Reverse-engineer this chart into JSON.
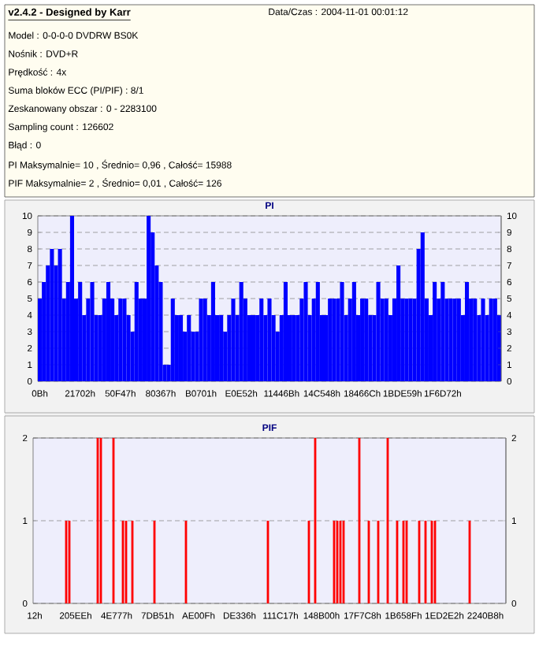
{
  "chart_data": [
    {
      "type": "other",
      "title": "v2.4.2 - Designed by Karr",
      "annotations": [
        "Data/Czas : 2004-11-01 00:01:12",
        "Model : 0-0-0-0 DVDRW BS0K",
        "Nośnik : DVD+R",
        "Prędkość : 4x",
        "Suma bloków ECC (PI/PIF) : 8/1",
        "Zeskanowany obszar : 0 - 2283100",
        "Sampling count : 126602",
        "Błąd : 0",
        "PI Maksymalnie= 10 , Średnio= 0,96 , Całość= 15988",
        "PIF Maksymalnie= 2 , Średnio= 0,01 , Całość= 126"
      ]
    },
    {
      "type": "bar",
      "title": "PI",
      "color": "#0000ff",
      "grid": "y",
      "categories": [
        "0Bh",
        null,
        null,
        null,
        null,
        null,
        null,
        null,
        null,
        null,
        "21702h",
        null,
        null,
        null,
        null,
        null,
        null,
        null,
        null,
        null,
        "50F47h",
        null,
        null,
        null,
        null,
        null,
        null,
        null,
        null,
        null,
        "80367h",
        null,
        null,
        null,
        null,
        null,
        null,
        null,
        null,
        null,
        "B0701h",
        null,
        null,
        null,
        null,
        null,
        null,
        null,
        null,
        null,
        "E0E52h",
        null,
        null,
        null,
        null,
        null,
        null,
        null,
        null,
        null,
        "11446Bh",
        null,
        null,
        null,
        null,
        null,
        null,
        null,
        null,
        null,
        "14C548h",
        null,
        null,
        null,
        null,
        null,
        null,
        null,
        null,
        null,
        "18466Ch",
        null,
        null,
        null,
        null,
        null,
        null,
        null,
        null,
        null,
        "1BDE59h",
        null,
        null,
        null,
        null,
        null,
        null,
        null,
        null,
        null,
        "1F6D72h",
        null,
        null,
        null,
        null,
        null,
        null,
        null,
        null,
        null,
        null,
        null,
        null,
        null,
        null
      ],
      "values": [
        5,
        6,
        7,
        8,
        7,
        8,
        5,
        6,
        10,
        5,
        6,
        4,
        5,
        6,
        4,
        4,
        5,
        6,
        5,
        4,
        5,
        5,
        4,
        3,
        6,
        5,
        5,
        10,
        9,
        7,
        6,
        1,
        1,
        5,
        4,
        4,
        3,
        4,
        3,
        3,
        5,
        5,
        4,
        6,
        4,
        4,
        3,
        4,
        5,
        4,
        6,
        5,
        4,
        4,
        4,
        5,
        4,
        5,
        4,
        3,
        4,
        6,
        4,
        4,
        4,
        5,
        6,
        4,
        5,
        6,
        4,
        4,
        5,
        5,
        5,
        6,
        4,
        5,
        6,
        4,
        5,
        5,
        4,
        4,
        6,
        5,
        5,
        4,
        5,
        7,
        5,
        5,
        5,
        5,
        8,
        9,
        5,
        4,
        6,
        5,
        6,
        5,
        5,
        5,
        5,
        4,
        6,
        5,
        5,
        4,
        5,
        4,
        5,
        5,
        4
      ],
      "ylim": [
        0,
        10
      ],
      "yticks": [
        0,
        1,
        2,
        3,
        4,
        5,
        6,
        7,
        8,
        9,
        10
      ],
      "y2lim": [
        0,
        10
      ],
      "y2ticks": [
        0,
        1,
        2,
        3,
        4,
        5,
        6,
        7,
        8,
        9,
        10
      ]
    },
    {
      "type": "bar",
      "title": "PIF",
      "color": "#ff0000",
      "grid": "y",
      "categories": [
        "12h",
        null,
        null,
        null,
        null,
        null,
        null,
        null,
        null,
        null,
        null,
        null,
        null,
        "205EEh",
        null,
        null,
        null,
        null,
        null,
        null,
        null,
        null,
        null,
        null,
        null,
        null,
        "4E777h",
        null,
        null,
        null,
        null,
        null,
        null,
        null,
        null,
        null,
        null,
        null,
        null,
        "7DB51h",
        null,
        null,
        null,
        null,
        null,
        null,
        null,
        null,
        null,
        null,
        null,
        null,
        "AE00Fh",
        null,
        null,
        null,
        null,
        null,
        null,
        null,
        null,
        null,
        null,
        null,
        null,
        "DE336h",
        null,
        null,
        null,
        null,
        null,
        null,
        null,
        null,
        null,
        null,
        null,
        null,
        "111C17h",
        null,
        null,
        null,
        null,
        null,
        null,
        null,
        null,
        null,
        null,
        null,
        null,
        "148B00h",
        null,
        null,
        null,
        null,
        null,
        null,
        null,
        null,
        null,
        null,
        null,
        null,
        "17F7C8h",
        null,
        null,
        null,
        null,
        null,
        null,
        null,
        null,
        null,
        null,
        null,
        null,
        "1B658Fh",
        null,
        null,
        null,
        null,
        null,
        null,
        null,
        null,
        null,
        null,
        null,
        null,
        "1ED2E2h",
        null,
        null,
        null,
        null,
        null,
        null,
        null,
        null,
        null,
        null,
        null,
        null,
        "2240B8h",
        null,
        null,
        null,
        null,
        null,
        null
      ],
      "values": [
        0,
        0,
        0,
        0,
        0,
        0,
        0,
        0,
        0,
        0,
        1,
        1,
        0,
        0,
        0,
        0,
        0,
        0,
        0,
        0,
        2,
        2,
        0,
        0,
        0,
        2,
        0,
        0,
        1,
        1,
        0,
        1,
        0,
        0,
        0,
        0,
        0,
        0,
        1,
        0,
        0,
        0,
        0,
        0,
        0,
        0,
        0,
        0,
        1,
        0,
        0,
        0,
        0,
        0,
        0,
        0,
        0,
        0,
        0,
        0,
        0,
        0,
        0,
        0,
        0,
        0,
        0,
        0,
        0,
        0,
        0,
        0,
        0,
        0,
        1,
        0,
        0,
        0,
        0,
        0,
        0,
        0,
        0,
        0,
        0,
        0,
        0,
        1,
        0,
        2,
        0,
        0,
        0,
        0,
        0,
        1,
        1,
        1,
        1,
        0,
        0,
        0,
        0,
        2,
        0,
        0,
        1,
        0,
        0,
        1,
        0,
        0,
        2,
        0,
        0,
        1,
        0,
        1,
        1,
        0,
        0,
        0,
        1,
        0,
        1,
        0,
        1,
        1,
        0,
        0,
        0,
        0,
        0,
        0,
        0,
        0,
        0,
        0,
        1,
        0,
        0,
        0,
        0,
        0,
        0,
        0,
        0,
        0,
        0,
        0
      ],
      "ylim": [
        0,
        2
      ],
      "yticks": [
        0,
        1,
        2
      ],
      "y2lim": [
        0,
        2
      ],
      "y2ticks": [
        0,
        1,
        2
      ]
    }
  ]
}
